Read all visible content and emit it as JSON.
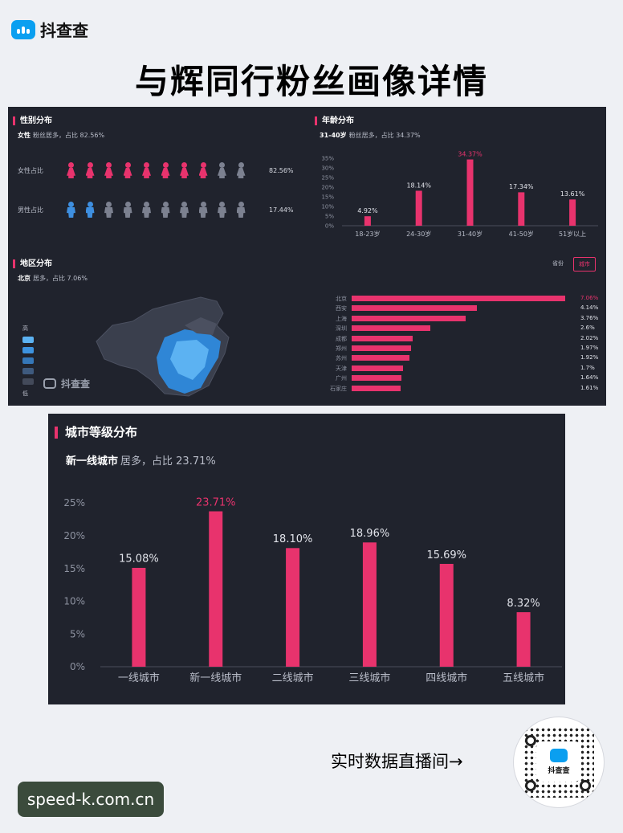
{
  "brand": {
    "name": "抖查查"
  },
  "headline": "与辉同行粉丝画像详情",
  "colors": {
    "accent": "#e8336d",
    "male": "#3e8fe0",
    "inactive": "#7c8190",
    "panel": "#20232d"
  },
  "gender": {
    "title": "性别分布",
    "sub_strong": "女性",
    "sub_text": "粉丝居多，占比 82.56%",
    "female": {
      "label": "女性占比",
      "value_text": "82.56%",
      "highlighted": 8,
      "total": 10
    },
    "male": {
      "label": "男性占比",
      "value_text": "17.44%",
      "highlighted": 2,
      "total": 10
    }
  },
  "age": {
    "title": "年龄分布",
    "sub_strong": "31-40岁",
    "sub_text": "粉丝居多，占比 34.37%"
  },
  "region": {
    "title": "地区分布",
    "sub_strong": "北京",
    "sub_text": "居多，占比 7.06%",
    "tabs": [
      {
        "label": "省份",
        "active": false
      },
      {
        "label": "城市",
        "active": true
      }
    ],
    "legend_high": "高",
    "legend_low": "低",
    "watermark": "抖查查"
  },
  "city_tier": {
    "title": "城市等级分布",
    "sub_strong": "新一线城市",
    "sub_text": "居多，占比 23.71%"
  },
  "chart_data": [
    {
      "type": "bar",
      "title": "年龄分布",
      "categories": [
        "18-23岁",
        "24-30岁",
        "31-40岁",
        "41-50岁",
        "51岁以上"
      ],
      "values": [
        4.92,
        18.14,
        34.37,
        17.34,
        13.61
      ],
      "value_labels": [
        "4.92%",
        "18.14%",
        "34.37%",
        "17.34%",
        "13.61%"
      ],
      "highlight_index": 2,
      "ylim": [
        0,
        35
      ],
      "y_ticks": [
        "0%",
        "5%",
        "10%",
        "15%",
        "20%",
        "25%",
        "30%",
        "35%"
      ],
      "grid": false
    },
    {
      "type": "bar",
      "orientation": "horizontal",
      "title": "地区分布",
      "categories": [
        "北京",
        "西安",
        "上海",
        "深圳",
        "成都",
        "郑州",
        "苏州",
        "天津",
        "广州",
        "石家庄"
      ],
      "values": [
        7.06,
        4.14,
        3.76,
        2.6,
        2.02,
        1.97,
        1.92,
        1.7,
        1.64,
        1.61
      ],
      "value_labels": [
        "7.06%",
        "4.14%",
        "3.76%",
        "2.6%",
        "2.02%",
        "1.97%",
        "1.92%",
        "1.7%",
        "1.64%",
        "1.61%"
      ],
      "highlight_index": 0
    },
    {
      "type": "bar",
      "title": "城市等级分布",
      "categories": [
        "一线城市",
        "新一线城市",
        "二线城市",
        "三线城市",
        "四线城市",
        "五线城市"
      ],
      "values": [
        15.08,
        23.71,
        18.1,
        18.96,
        15.69,
        8.32
      ],
      "value_labels": [
        "15.08%",
        "23.71%",
        "18.10%",
        "18.96%",
        "15.69%",
        "8.32%"
      ],
      "highlight_index": 1,
      "ylim": [
        0,
        25
      ],
      "y_ticks": [
        "0%",
        "5%",
        "10%",
        "15%",
        "20%",
        "25%"
      ],
      "grid": false
    }
  ],
  "live": {
    "text": "实时数据直播间→",
    "qr_label": "抖查查"
  },
  "site": "speed-k.com.cn"
}
